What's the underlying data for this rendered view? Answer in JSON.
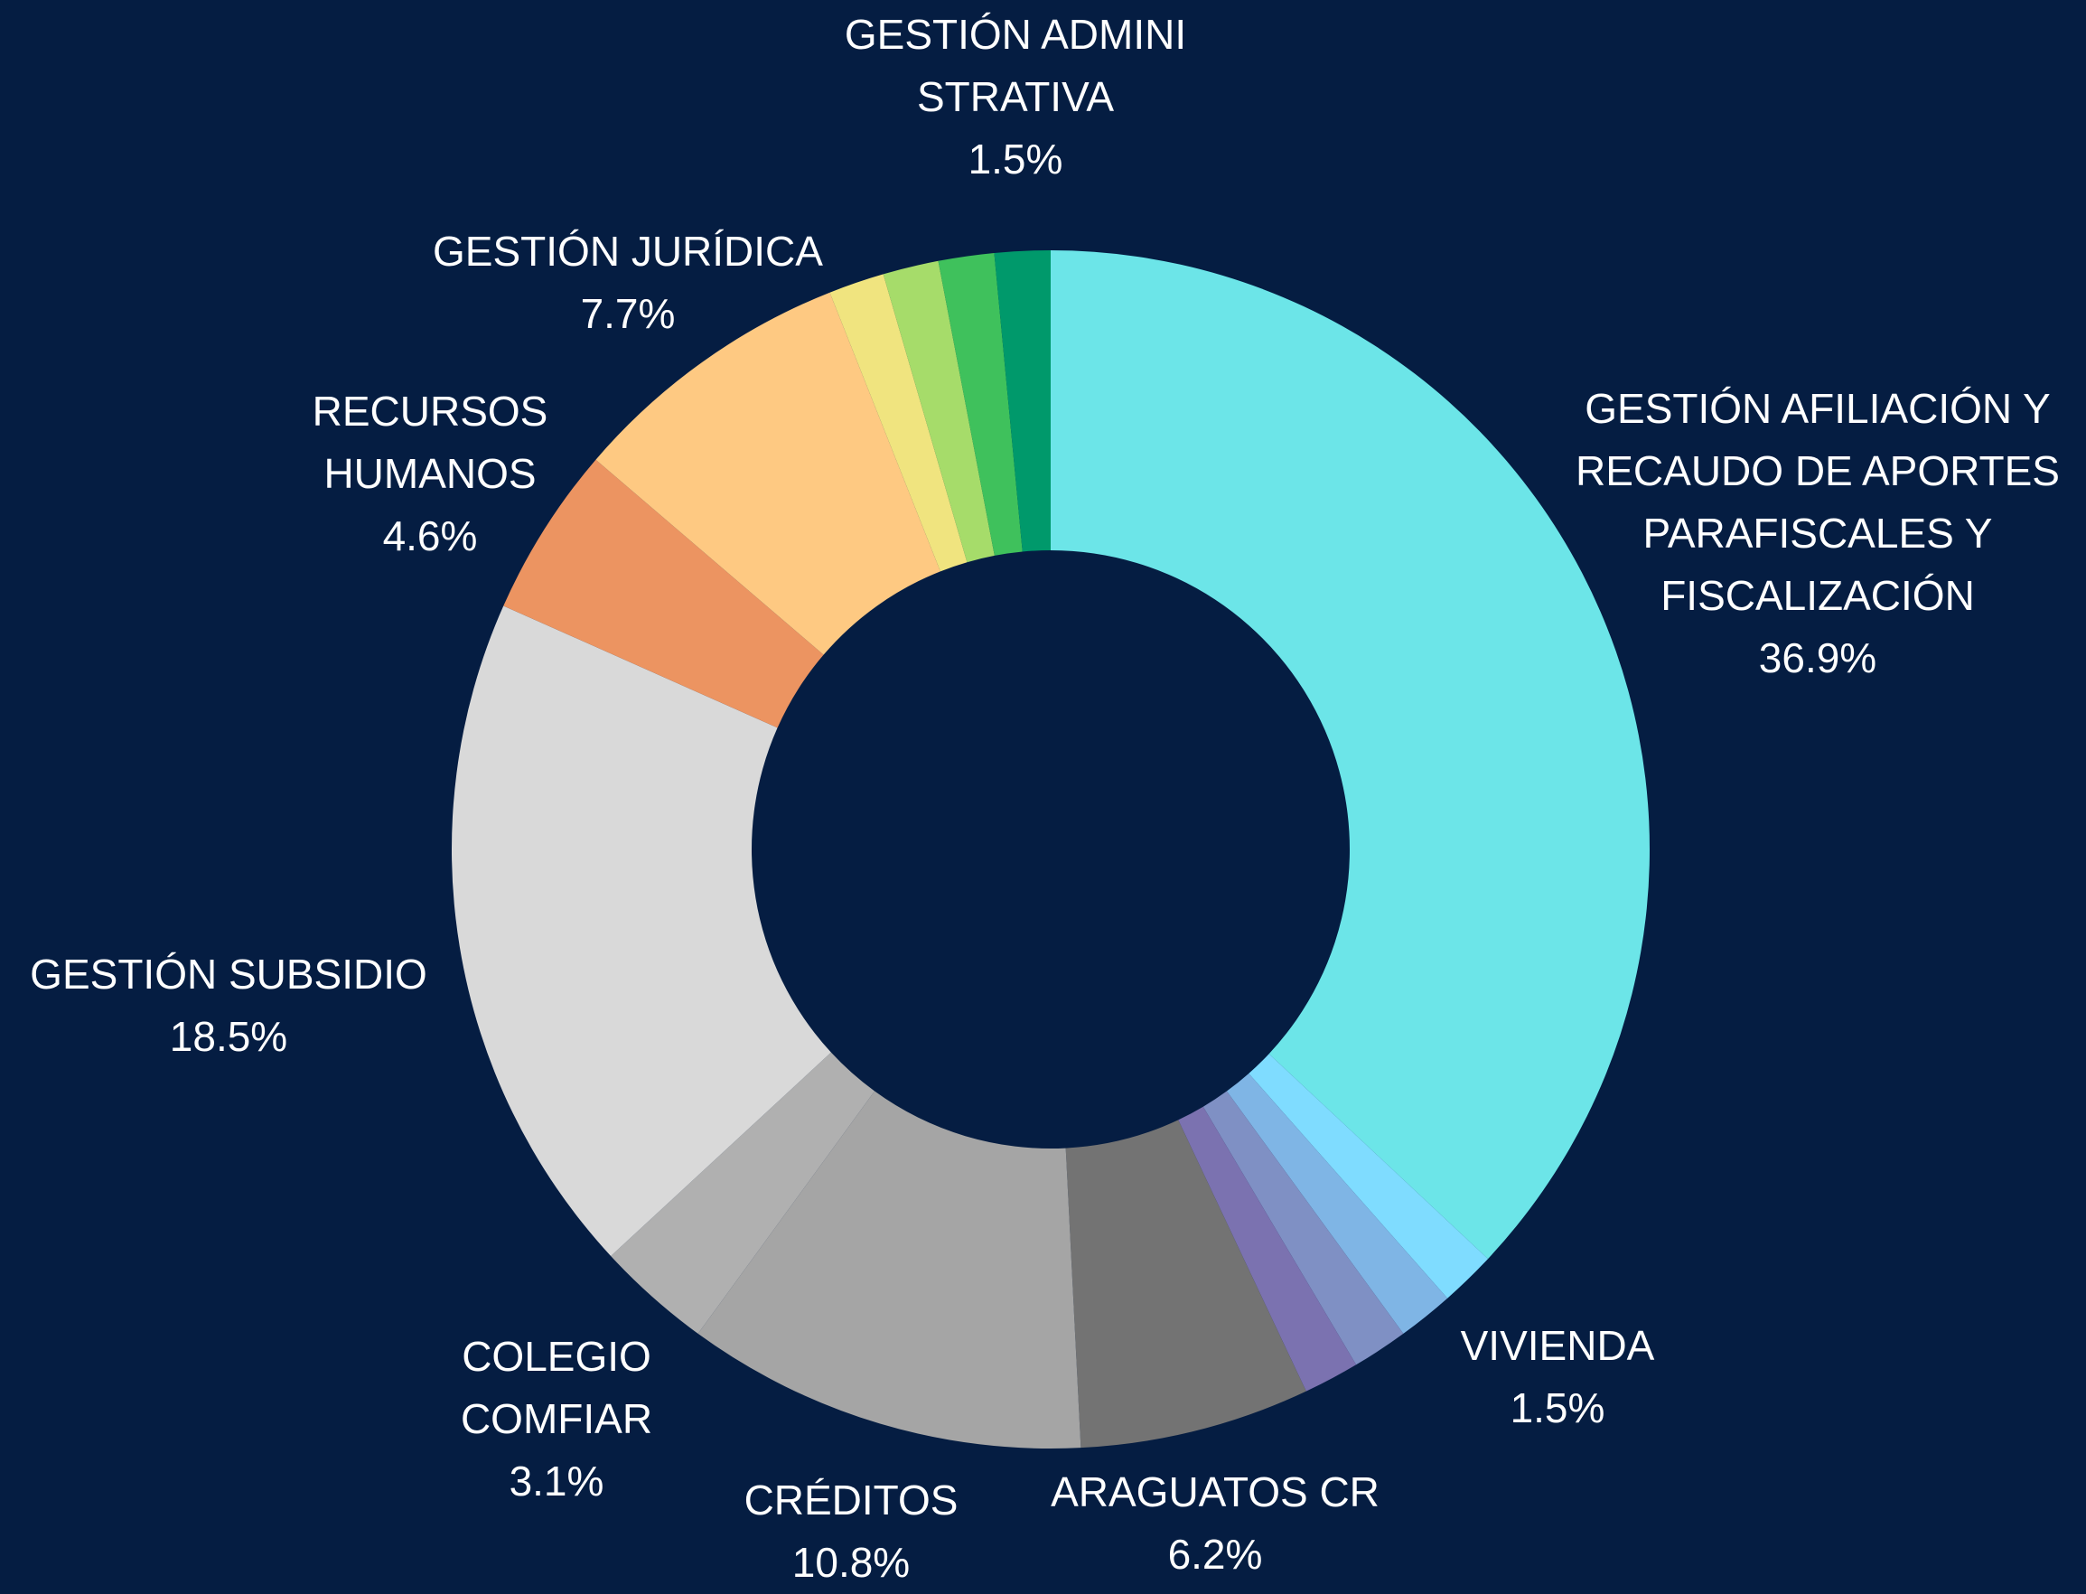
{
  "chart_data": {
    "type": "donut",
    "categories": [
      "GESTIÓN AFILIACIÓN Y RECAUDO DE APORTES PARAFISCALES Y FISCALIZACIÓN",
      "VIVIENDA",
      null,
      null,
      null,
      "ARAGUATOS CR",
      "CRÉDITOS",
      "COLEGIO COMFIAR",
      "GESTIÓN SUBSIDIO",
      "RECURSOS HUMANOS",
      "GESTIÓN JURÍDICA",
      null,
      null,
      null,
      "GESTIÓN ADMINISTRATIVA"
    ],
    "values": [
      36.9,
      1.5,
      1.5,
      1.5,
      1.5,
      6.2,
      10.8,
      3.1,
      18.5,
      4.6,
      7.7,
      1.5,
      1.5,
      1.5,
      1.5
    ],
    "value_labels": [
      "36.9%",
      "1.5%",
      null,
      null,
      null,
      "6.2%",
      "10.8%",
      "3.1%",
      "18.5%",
      "4.6%",
      "7.7%",
      null,
      null,
      null,
      "1.5%"
    ],
    "colors": [
      "#6ce5e8",
      "#7fdcff",
      "#7fb5e5",
      "#7f90c4",
      "#7b72b0",
      "#737373",
      "#a5a5a5",
      "#b0b0b0",
      "#d9d9d9",
      "#ec9461",
      "#fec982",
      "#f0e47f",
      "#a6dc6a",
      "#3fc15c",
      "#00996b"
    ]
  }
}
